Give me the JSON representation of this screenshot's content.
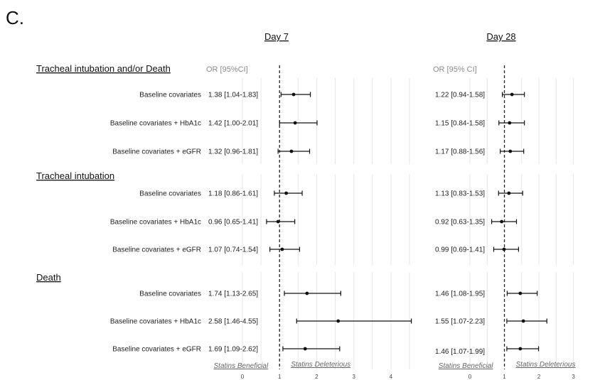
{
  "panel_letter": "C.",
  "or_headers": [
    "OR [95%CI]",
    "OR [95% CI]"
  ],
  "footers": {
    "beneficial": "Statins Beneficial",
    "deleterious": "Statins Deleterious"
  },
  "chart_data": {
    "type": "forest",
    "panels": [
      {
        "title": "Day 7",
        "xlim": [
          0,
          4.5
        ],
        "ticks": [
          0,
          1,
          2,
          3,
          4
        ],
        "reference_line": 1,
        "groups": [
          {
            "name": "Tracheal intubation and/or Death",
            "rows": [
              {
                "label": "Baseline covariates",
                "or": 1.38,
                "lo": 1.04,
                "hi": 1.83,
                "text": "1.38 [1.04-1.83]"
              },
              {
                "label": "Baseline covariates + HbA1c",
                "or": 1.42,
                "lo": 1.0,
                "hi": 2.01,
                "text": "1.42 [1.00-2.01]"
              },
              {
                "label": "Baseline covariates + eGFR",
                "or": 1.32,
                "lo": 0.96,
                "hi": 1.81,
                "text": "1.32 [0.96-1.81]"
              }
            ]
          },
          {
            "name": "Tracheal intubation",
            "rows": [
              {
                "label": "Baseline covariates",
                "or": 1.18,
                "lo": 0.86,
                "hi": 1.61,
                "text": "1.18 [0.86-1.61]"
              },
              {
                "label": "Baseline covariates + HbA1c",
                "or": 0.96,
                "lo": 0.65,
                "hi": 1.41,
                "text": "0.96 [0.65-1.41]"
              },
              {
                "label": "Baseline covariates + eGFR",
                "or": 1.07,
                "lo": 0.74,
                "hi": 1.54,
                "text": "1.07 [0.74-1.54]"
              }
            ]
          },
          {
            "name": "Death",
            "rows": [
              {
                "label": "Baseline covariates",
                "or": 1.74,
                "lo": 1.13,
                "hi": 2.65,
                "text": "1.74 [1.13-2.65]"
              },
              {
                "label": "Baseline covariates + HbA1c",
                "or": 2.58,
                "lo": 1.46,
                "hi": 4.55,
                "text": "2.58 [1.46-4.55]"
              },
              {
                "label": "Baseline covariates + eGFR",
                "or": 1.69,
                "lo": 1.09,
                "hi": 2.62,
                "text": "1.69 [1.09-2.62]"
              }
            ]
          }
        ]
      },
      {
        "title": "Day 28",
        "xlim": [
          0,
          3.4
        ],
        "ticks": [
          0,
          1,
          2,
          3
        ],
        "reference_line": 1,
        "groups": [
          {
            "name": "Tracheal intubation and/or Death",
            "rows": [
              {
                "or": 1.22,
                "lo": 0.94,
                "hi": 1.58,
                "text": "1.22 [0.94-1.58]"
              },
              {
                "or": 1.15,
                "lo": 0.84,
                "hi": 1.58,
                "text": "1.15 [0.84-1.58]"
              },
              {
                "or": 1.17,
                "lo": 0.88,
                "hi": 1.56,
                "text": "1.17 [0.88-1.56]"
              }
            ]
          },
          {
            "name": "Tracheal intubation",
            "rows": [
              {
                "or": 1.13,
                "lo": 0.83,
                "hi": 1.53,
                "text": "1.13 [0.83-1.53]"
              },
              {
                "or": 0.92,
                "lo": 0.63,
                "hi": 1.35,
                "text": "0.92 [0.63-1.35]"
              },
              {
                "or": 0.99,
                "lo": 0.69,
                "hi": 1.41,
                "text": "0.99 [0.69-1.41]"
              }
            ]
          },
          {
            "name": "Death",
            "rows": [
              {
                "or": 1.46,
                "lo": 1.08,
                "hi": 1.95,
                "text": "1.46 [1.08-1.95]"
              },
              {
                "or": 1.55,
                "lo": 1.07,
                "hi": 2.23,
                "text": "1.55 [1.07-2.23]"
              },
              {
                "or": 1.46,
                "lo": 1.07,
                "hi": 1.99,
                "text": "1.46 [1.07-1.99]"
              }
            ]
          }
        ]
      }
    ]
  }
}
